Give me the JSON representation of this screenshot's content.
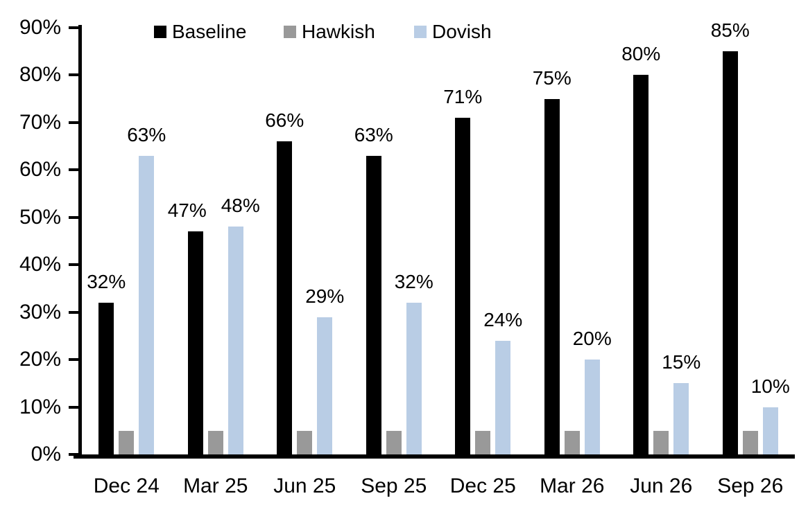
{
  "chart_data": {
    "type": "bar",
    "title": "",
    "xlabel": "",
    "ylabel": "",
    "ylim": [
      0,
      90
    ],
    "ytick_step": 10,
    "ytick_labels": [
      "0%",
      "10%",
      "20%",
      "30%",
      "40%",
      "50%",
      "60%",
      "70%",
      "80%",
      "90%"
    ],
    "grid": false,
    "legend_position": "top",
    "categories": [
      "Dec 24",
      "Mar 25",
      "Jun 25",
      "Sep 25",
      "Dec 25",
      "Mar 26",
      "Jun 26",
      "Sep 26"
    ],
    "series": [
      {
        "name": "Baseline",
        "color": "#000000",
        "values": [
          32,
          47,
          66,
          63,
          71,
          75,
          80,
          85
        ],
        "labels": [
          "32%",
          "47%",
          "66%",
          "63%",
          "71%",
          "75%",
          "80%",
          "85%"
        ],
        "show_labels": true,
        "label_dx": [
          0,
          -12,
          0,
          0,
          0,
          0,
          0,
          0
        ]
      },
      {
        "name": "Hawkish",
        "color": "#999999",
        "values": [
          5,
          5,
          5,
          5,
          5,
          5,
          5,
          5
        ],
        "labels": [
          "",
          "",
          "",
          "",
          "",
          "",
          "",
          ""
        ],
        "show_labels": false,
        "label_dx": [
          0,
          0,
          0,
          0,
          0,
          0,
          0,
          0
        ]
      },
      {
        "name": "Dovish",
        "color": "#B9CDE5",
        "values": [
          63,
          48,
          29,
          32,
          24,
          20,
          15,
          10
        ],
        "labels": [
          "63%",
          "48%",
          "29%",
          "32%",
          "24%",
          "20%",
          "15%",
          "10%"
        ],
        "show_labels": true,
        "label_dx": [
          0,
          7,
          0,
          0,
          0,
          0,
          0,
          0
        ]
      }
    ]
  }
}
